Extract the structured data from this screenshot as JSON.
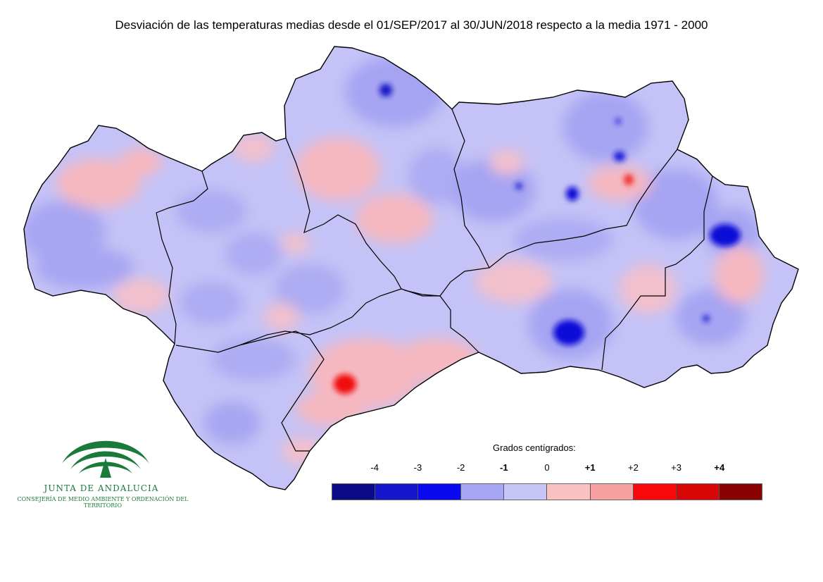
{
  "title": "Desviación de las temperaturas medias desde el 01/SEP/2017 al 30/JUN/2018 respecto a la media 1971 - 2000",
  "legend": {
    "title": "Grados centígrados:",
    "ticks": [
      "-4",
      "-3",
      "-2",
      "-1",
      "0",
      "+1",
      "+2",
      "+3",
      "+4"
    ],
    "bold_ticks": [
      "-1",
      "+1",
      "+4"
    ],
    "colors": [
      "#0b0b88",
      "#1616cc",
      "#0a0af0",
      "#a6a6f4",
      "#c8c6f8",
      "#fcc2c2",
      "#f8a0a0",
      "#f80808",
      "#d80606",
      "#8a0202"
    ]
  },
  "map": {
    "base_color": "#c4c2f6",
    "border_color": "#000000"
  },
  "logo": {
    "name": "JUNTA DE ANDALUCIA",
    "subtitle": "CONSEJERÍA DE MEDIO AMBIENTE Y ORDENACIÓN DEL TERRITORIO",
    "color": "#1a7a3a"
  }
}
